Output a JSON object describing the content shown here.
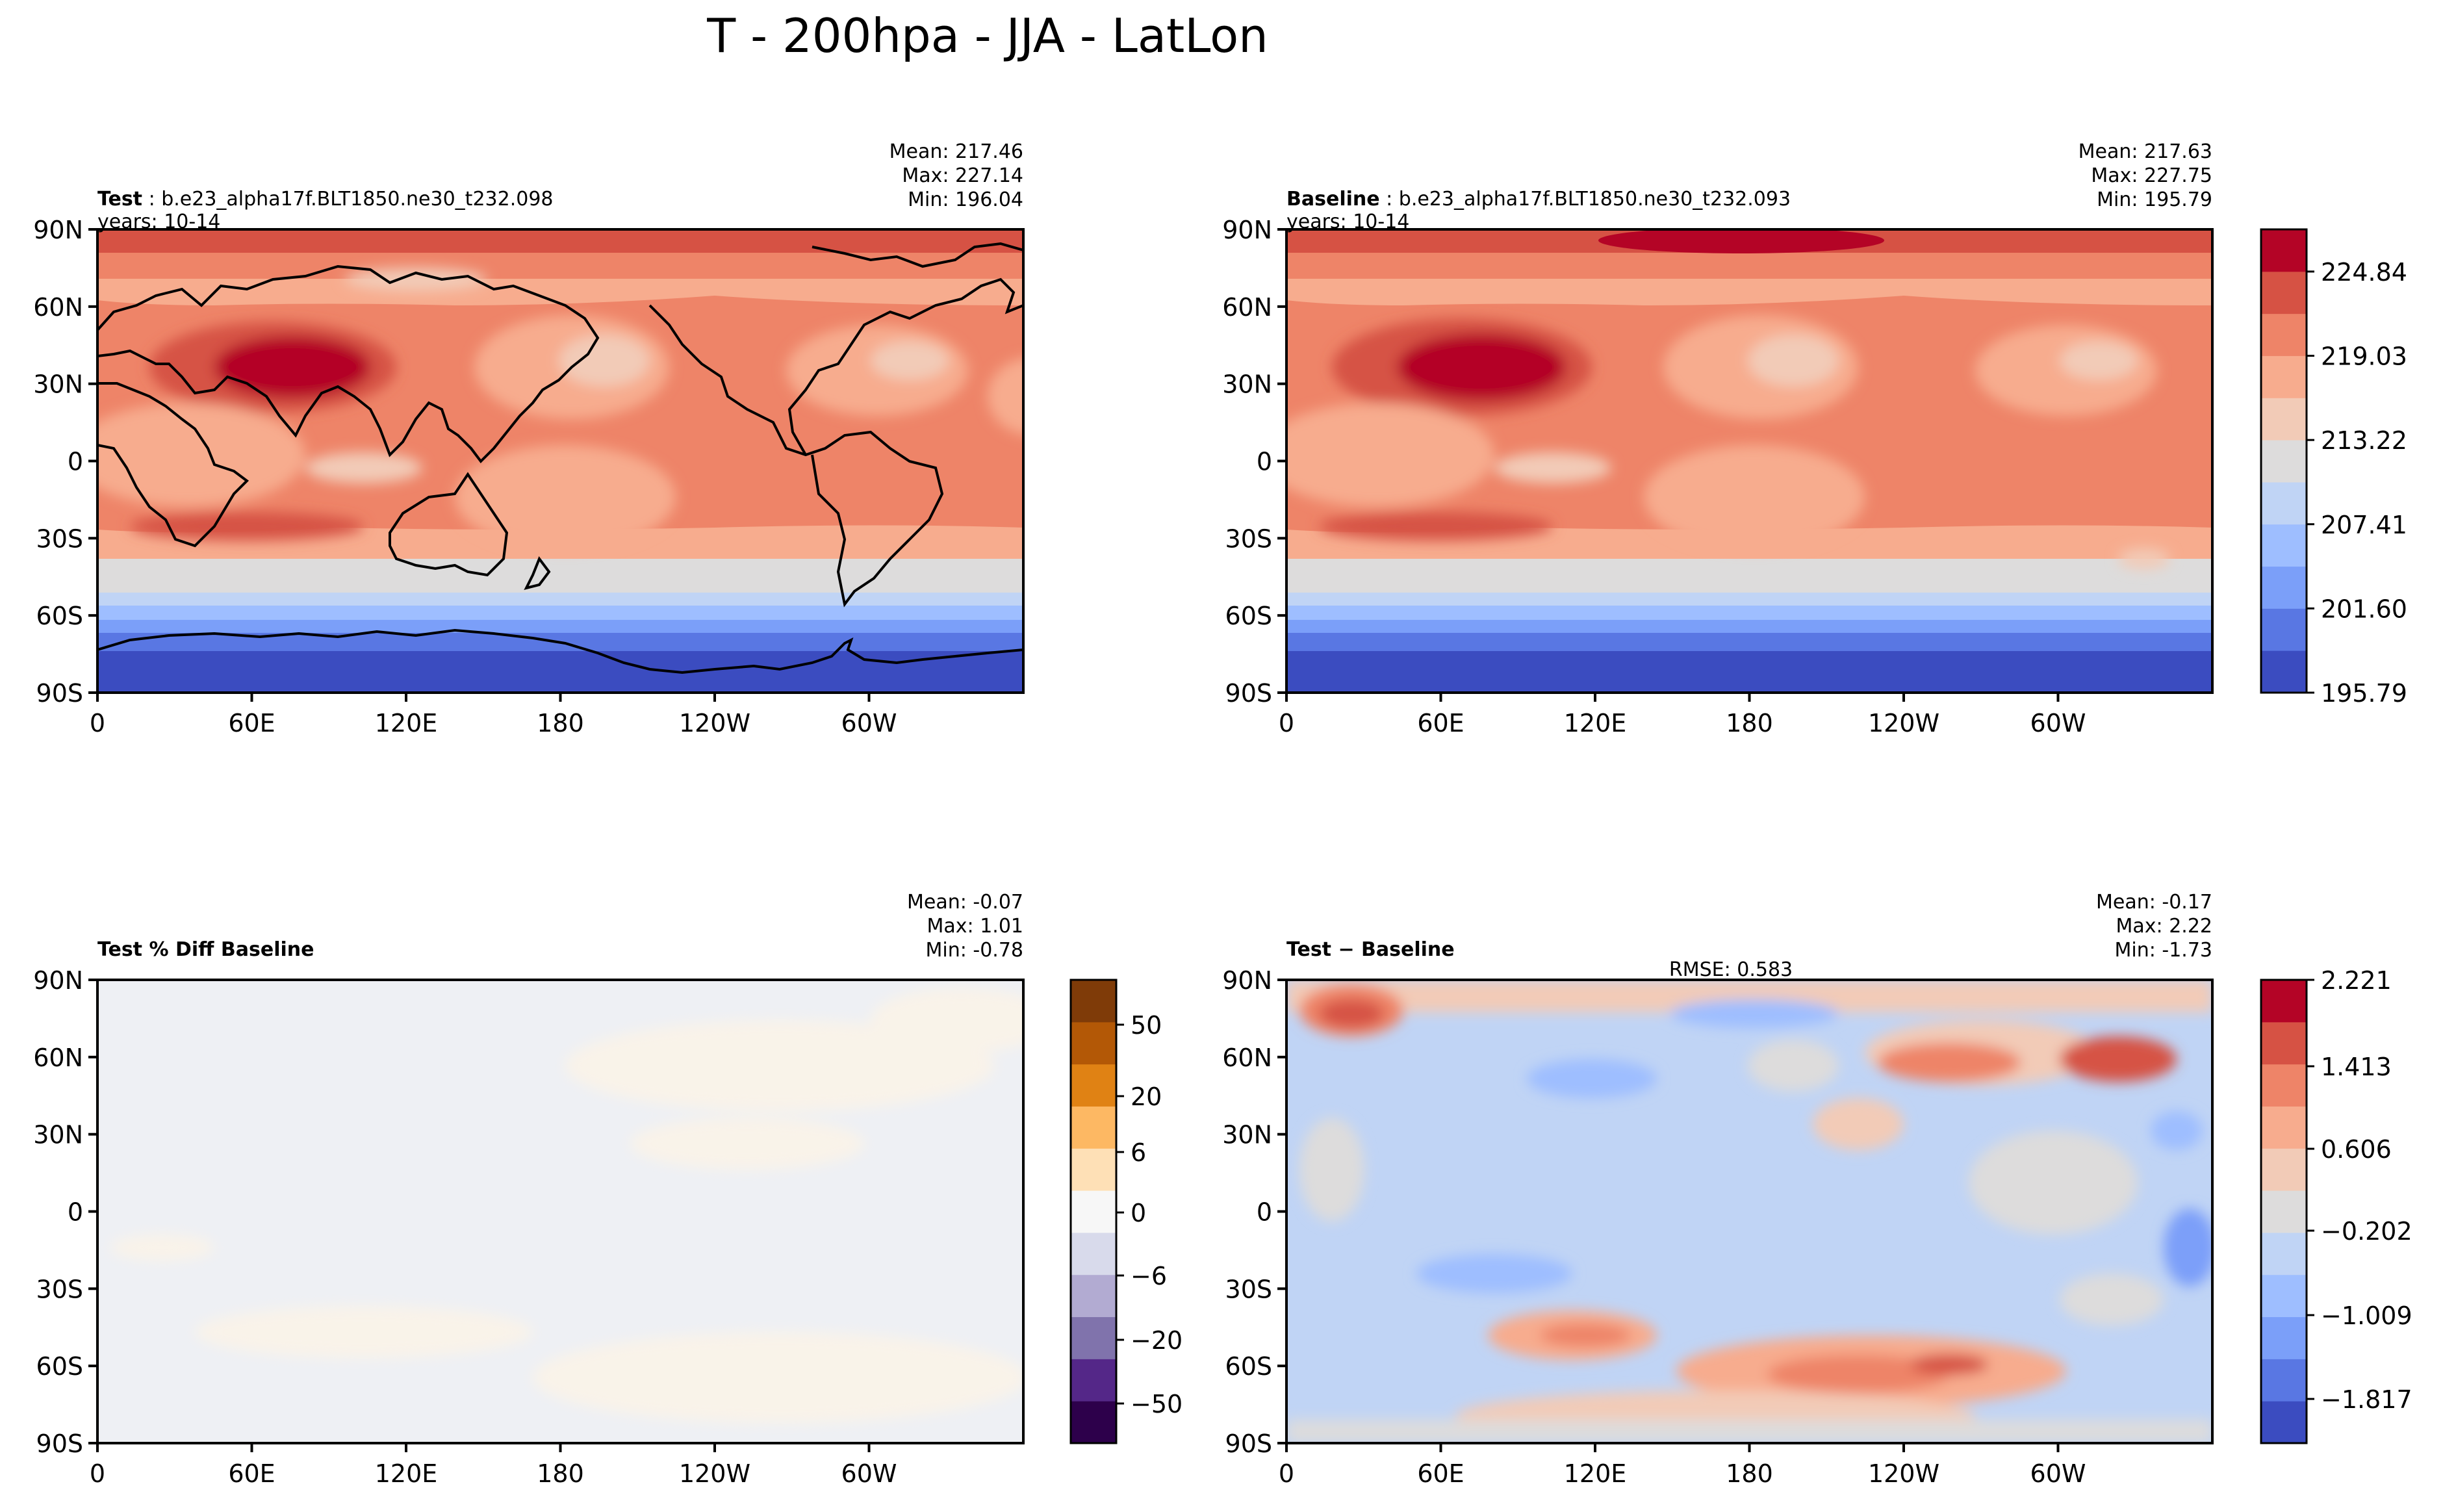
{
  "figure_title": "T - 200hpa - JJA - LatLon",
  "lat_ticks": [
    "90N",
    "60N",
    "30N",
    "0",
    "30S",
    "60S",
    "90S"
  ],
  "lon_ticks": [
    "0",
    "60E",
    "120E",
    "180",
    "120W",
    "60W"
  ],
  "panels": [
    {
      "id": "test",
      "label_bold": "Test",
      "label_sep": ":",
      "label_text": "b.e23_alpha17f.BLT1850.ne30_t232.098",
      "years": "years: 10-14",
      "stats": [
        "Mean: 217.46",
        "Max: 227.14",
        "Min: 196.04"
      ],
      "rmse": ""
    },
    {
      "id": "baseline",
      "label_bold": "Baseline",
      "label_sep": ":",
      "label_text": "b.e23_alpha17f.BLT1850.ne30_t232.093",
      "years": "years: 10-14",
      "stats": [
        "Mean: 217.63",
        "Max: 227.75",
        "Min: 195.79"
      ],
      "rmse": ""
    },
    {
      "id": "pctdiff",
      "label_bold": "Test % Diff Baseline",
      "label_sep": "",
      "label_text": "",
      "years": "",
      "stats": [
        "Mean: -0.07",
        "Max:  1.01",
        "Min: -0.78"
      ],
      "rmse": ""
    },
    {
      "id": "diff",
      "label_bold": "Test − Baseline",
      "label_sep": "",
      "label_text": "",
      "years": "",
      "stats": [
        "Mean: -0.17",
        "Max:  2.22",
        "Min: -1.73"
      ],
      "rmse": "RMSE: 0.583"
    }
  ],
  "colorbars": {
    "temperature": {
      "colors": [
        "#3b4cc0",
        "#5977e3",
        "#7b9ff9",
        "#9ebeff",
        "#c0d4f5",
        "#dddcdc",
        "#f2cbb7",
        "#f7ac8e",
        "#ee8468",
        "#d65244",
        "#b40426"
      ],
      "ticks": [
        "224.84",
        "219.03",
        "213.22",
        "207.41",
        "201.60",
        "195.79"
      ],
      "min": 195.79,
      "max": 227.75
    },
    "pct_diff": {
      "colors": [
        "#2d004b",
        "#542788",
        "#8073ac",
        "#b2abd2",
        "#d8daeb",
        "#f7f7f7",
        "#fee0b6",
        "#fdb863",
        "#e08214",
        "#b35806",
        "#7f3b08"
      ],
      "ticks": [
        "50",
        "20",
        "6",
        "0",
        "−6",
        "−20",
        "−50"
      ]
    },
    "difference": {
      "colors": [
        "#3b4cc0",
        "#5977e3",
        "#7b9ff9",
        "#9ebeff",
        "#c0d4f5",
        "#dddcdc",
        "#f2cbb7",
        "#f7ac8e",
        "#ee8468",
        "#d65244",
        "#b40426"
      ],
      "ticks": [
        "2.221",
        "1.413",
        "0.606",
        "−0.202",
        "−1.009",
        "−1.817"
      ]
    }
  },
  "chart_data": [
    {
      "type": "heatmap",
      "title": "Test : b.e23_alpha17f.BLT1850.ne30_t232.098",
      "variable": "T",
      "level": "200hpa",
      "season": "JJA",
      "x_range": [
        0,
        360
      ],
      "y_range": [
        -90,
        90
      ],
      "zonal_mean_profile": {
        "lat": [
          -90,
          -75,
          -65,
          -55,
          -45,
          -35,
          -25,
          -15,
          0,
          15,
          30,
          45,
          60,
          75,
          90
        ],
        "value": [
          197,
          199,
          204,
          211,
          215,
          220,
          221,
          220,
          219,
          220,
          222,
          221,
          219,
          221,
          226
        ]
      },
      "mean": 217.46,
      "max": 227.14,
      "min": 196.04
    },
    {
      "type": "heatmap",
      "title": "Baseline : b.e23_alpha17f.BLT1850.ne30_t232.093",
      "variable": "T",
      "level": "200hpa",
      "season": "JJA",
      "x_range": [
        0,
        360
      ],
      "y_range": [
        -90,
        90
      ],
      "zonal_mean_profile": {
        "lat": [
          -90,
          -75,
          -65,
          -55,
          -45,
          -35,
          -25,
          -15,
          0,
          15,
          30,
          45,
          60,
          75,
          90
        ],
        "value": [
          196,
          199,
          204,
          211,
          215,
          220,
          222,
          220,
          219,
          220,
          222,
          221,
          219,
          221,
          225
        ]
      },
      "mean": 217.63,
      "max": 227.75,
      "min": 195.79
    },
    {
      "type": "heatmap",
      "title": "Test % Diff Baseline",
      "x_range": [
        0,
        360
      ],
      "y_range": [
        -90,
        90
      ],
      "mean": -0.07,
      "max": 1.01,
      "min": -0.78
    },
    {
      "type": "heatmap",
      "title": "Test − Baseline",
      "x_range": [
        0,
        360
      ],
      "y_range": [
        -90,
        90
      ],
      "mean": -0.17,
      "max": 2.22,
      "min": -1.73,
      "rmse": 0.583
    }
  ]
}
